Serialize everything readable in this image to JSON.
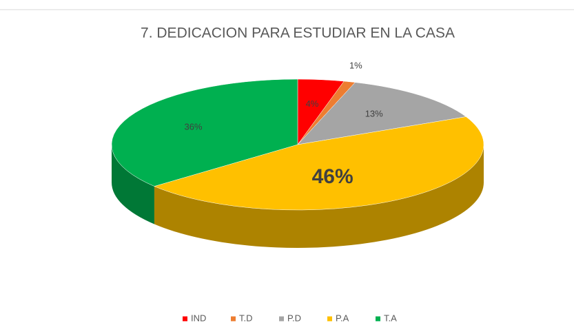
{
  "chart_data": {
    "type": "pie",
    "title": "7. DEDICACION PARA ESTUDIAR EN LA CASA",
    "categories": [
      "IND",
      "T.D",
      "P.D",
      "P.A",
      "T.A"
    ],
    "values": [
      4,
      1,
      13,
      46,
      36
    ],
    "value_labels": [
      "4%",
      "1%",
      "13%",
      "46%",
      "36%"
    ],
    "colors": [
      "#ff0000",
      "#ed7d31",
      "#a5a5a5",
      "#ffc000",
      "#00b050"
    ],
    "legend": "bottom"
  }
}
